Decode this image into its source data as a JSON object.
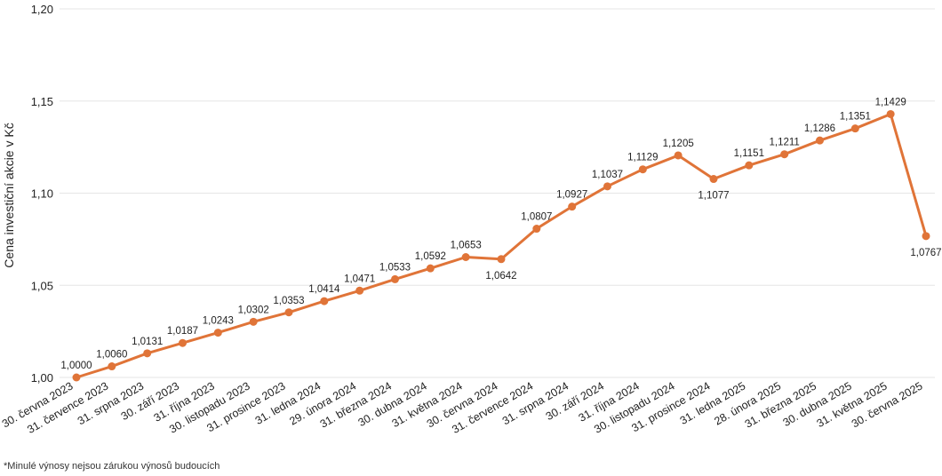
{
  "footnote": "*Minulé výnosy nejsou zárukou výnosů budoucích",
  "chart_data": {
    "type": "line",
    "ylabel": "Cena investiční akcie v Kč",
    "ylim": [
      1.0,
      1.2
    ],
    "yticks": [
      "1,00",
      "1,05",
      "1,10",
      "1,15",
      "1,20"
    ],
    "ytick_values": [
      1.0,
      1.05,
      1.1,
      1.15,
      1.2
    ],
    "grid": true,
    "line_color": "#E07438",
    "categories": [
      "30. června 2023",
      "31. července 2023",
      "31. srpna 2023",
      "30. září 2023",
      "31. října 2023",
      "30. listopadu 2023",
      "31. prosince 2023",
      "31. ledna 2024",
      "29. února 2024",
      "31. března 2024",
      "30. dubna 2024",
      "31. května 2024",
      "30. června 2024",
      "31. července 2024",
      "31. srpna 2024",
      "30. září 2024",
      "31. října 2024",
      "30. listopadu 2024",
      "31. prosince 2024",
      "31. ledna 2025",
      "28. února 2025",
      "31. března 2025",
      "30. dubna 2025",
      "31. května 2025",
      "30. června 2025"
    ],
    "values": [
      1.0,
      1.006,
      1.0131,
      1.0187,
      1.0243,
      1.0302,
      1.0353,
      1.0414,
      1.0471,
      1.0533,
      1.0592,
      1.0653,
      1.0642,
      1.0807,
      1.0927,
      1.1037,
      1.1129,
      1.1205,
      1.1077,
      1.1151,
      1.1211,
      1.1286,
      1.1351,
      1.1429,
      1.0767
    ],
    "value_labels": [
      "1,0000",
      "1,0060",
      "1,0131",
      "1,0187",
      "1,0243",
      "1,0302",
      "1,0353",
      "1,0414",
      "1,0471",
      "1,0533",
      "1,0592",
      "1,0653",
      "1,0642",
      "1,0807",
      "1,0927",
      "1,1037",
      "1,1129",
      "1,1205",
      "1,1077",
      "1,1151",
      "1,1211",
      "1,1286",
      "1,1351",
      "1,1429",
      "1,0767"
    ],
    "label_below": [
      false,
      false,
      false,
      false,
      false,
      false,
      false,
      false,
      false,
      false,
      false,
      false,
      true,
      false,
      false,
      false,
      false,
      false,
      true,
      false,
      false,
      false,
      false,
      false,
      true
    ]
  }
}
